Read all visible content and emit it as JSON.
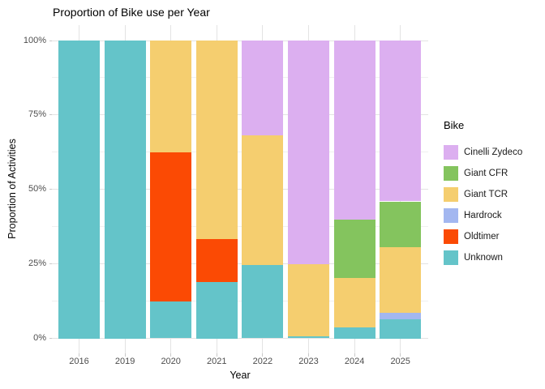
{
  "chart_data": {
    "type": "bar",
    "variant": "stacked-100-percent",
    "title": "Proportion of Bike use per Year",
    "xlabel": "Year",
    "ylabel": "Proportion of Activities",
    "categories": [
      "2016",
      "2019",
      "2020",
      "2021",
      "2022",
      "2023",
      "2024",
      "2025"
    ],
    "y_tick_labels": [
      "0%",
      "25%",
      "50%",
      "75%",
      "100%"
    ],
    "y_major_ticks_pct": [
      0,
      25,
      50,
      75,
      100
    ],
    "y_minor_ticks_pct": [
      12.5,
      37.5,
      62.5,
      87.5
    ],
    "ylim": [
      0,
      100
    ],
    "grid": "on",
    "legend": {
      "title": "Bike",
      "position": "right"
    },
    "series": [
      {
        "name": "Cinelli Zydeco",
        "color": "#DCAFF0",
        "values": [
          0,
          0,
          0,
          0,
          31.9,
          75.2,
          60,
          54
        ]
      },
      {
        "name": "Giant CFR",
        "color": "#84C45E",
        "values": [
          0,
          0,
          0,
          0,
          0,
          0,
          19.8,
          15.4
        ]
      },
      {
        "name": "Giant TCR",
        "color": "#F5CE6F",
        "values": [
          0,
          0,
          37.5,
          66.7,
          43.4,
          24,
          16.4,
          22.1
        ]
      },
      {
        "name": "Hardrock",
        "color": "#A3B7F0",
        "values": [
          0,
          0,
          0,
          0,
          0,
          0,
          0,
          2.1
        ]
      },
      {
        "name": "Oldtimer",
        "color": "#FB4A04",
        "values": [
          0,
          0,
          50,
          14.4,
          0,
          0,
          0,
          0
        ]
      },
      {
        "name": "Unknown",
        "color": "#64C4C9",
        "values": [
          100,
          100,
          12.5,
          18.9,
          24.7,
          0.8,
          3.8,
          6.4
        ]
      }
    ],
    "stack_order_bottom_to_top": [
      "Unknown",
      "Oldtimer",
      "Hardrock",
      "Giant TCR",
      "Giant CFR",
      "Cinelli Zydeco"
    ],
    "style_colors": {
      "background": "#FFFFFF",
      "grid_major": "#E3E3E3",
      "grid_minor": "#F0F0F0",
      "tick_mark": "#C9C9C9",
      "tick_label": "#4D4D4D",
      "title_text": "#000000"
    }
  }
}
